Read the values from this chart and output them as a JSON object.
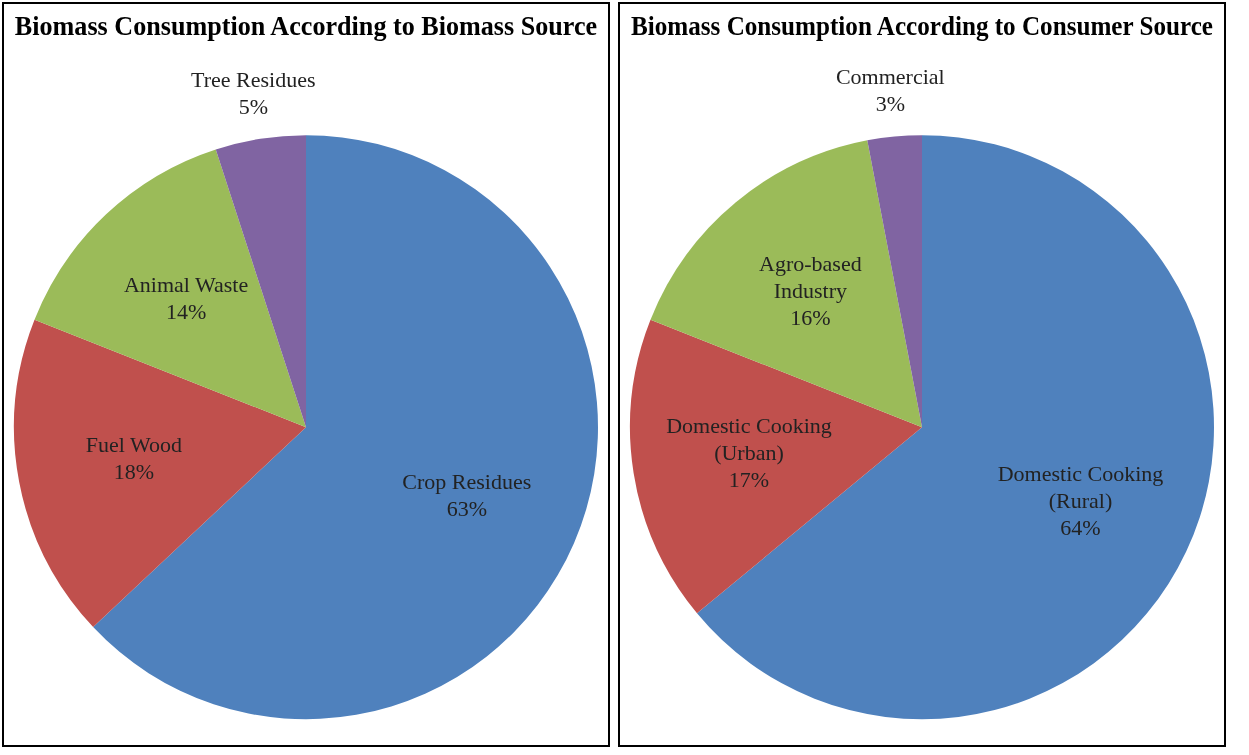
{
  "chart_data": [
    {
      "type": "pie",
      "title": "Biomass Consumption According to Biomass Source",
      "categories": [
        "Crop Residues",
        "Fuel Wood",
        "Animal Waste",
        "Tree Residues"
      ],
      "values": [
        63,
        18,
        14,
        5
      ],
      "value_labels": [
        "63%",
        "18%",
        "14%",
        "5%"
      ],
      "colors": [
        "#4f81bd",
        "#c0504d",
        "#9bbb59",
        "#8064a2"
      ],
      "legend": false
    },
    {
      "type": "pie",
      "title": "Biomass Consumption According to Consumer Source",
      "categories": [
        "Domestic Cooking (Rural)",
        "Domestic Cooking (Urban)",
        "Agro-based Industry",
        "Commercial"
      ],
      "values": [
        64,
        17,
        16,
        3
      ],
      "value_labels": [
        "64%",
        "17%",
        "16%",
        "3%"
      ],
      "colors": [
        "#4f81bd",
        "#c0504d",
        "#9bbb59",
        "#8064a2"
      ],
      "legend": false
    }
  ]
}
